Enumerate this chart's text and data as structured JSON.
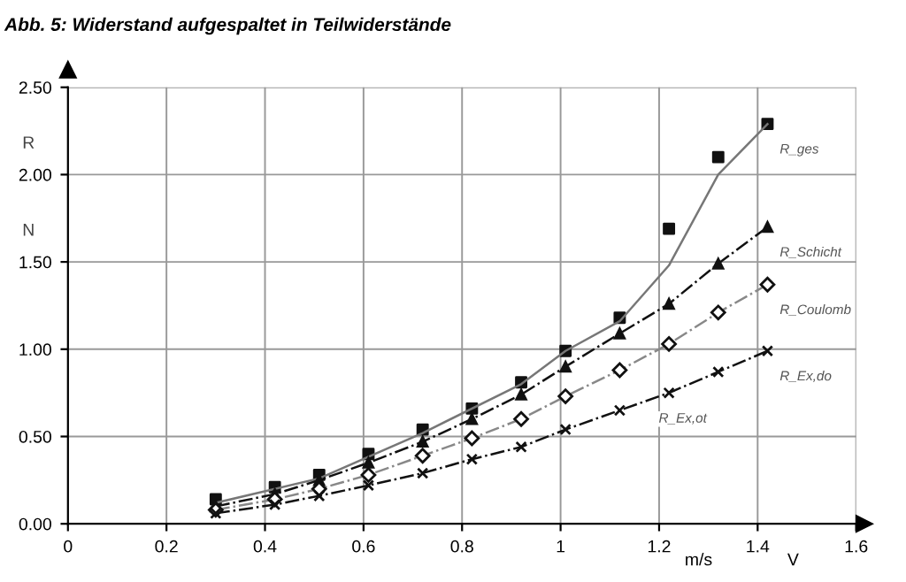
{
  "chart_data": {
    "type": "line",
    "title": "Abb. 5: Widerstand aufgespaltet in Teilwiderstände",
    "xlabel": "V",
    "ylabel": "R N",
    "x": [
      0.3,
      0.42,
      0.51,
      0.61,
      0.72,
      0.82,
      0.92,
      1.01,
      1.12,
      1.22,
      1.32,
      1.42
    ],
    "series": [
      {
        "type": "scatter",
        "marker": "square",
        "color": "#111111",
        "values": [
          0.14,
          0.21,
          0.28,
          0.4,
          0.54,
          0.66,
          0.81,
          0.99,
          1.18,
          1.69,
          2.1,
          2.29
        ]
      },
      {
        "name": "R_ges",
        "x": [
          0.3,
          0.51,
          0.72,
          0.92,
          1.01,
          1.12,
          1.22,
          1.32,
          1.42
        ],
        "marker": "none",
        "line_style": "solid",
        "color": "#777777",
        "values": [
          0.12,
          0.26,
          0.52,
          0.8,
          0.99,
          1.16,
          1.48,
          2.0,
          2.29
        ]
      },
      {
        "name": "R_Schicht",
        "marker": "triangle",
        "line_style": "dashed",
        "color": "#111111",
        "values": [
          0.1,
          0.17,
          0.25,
          0.35,
          0.47,
          0.6,
          0.74,
          0.9,
          1.09,
          1.26,
          1.49,
          1.7
        ]
      },
      {
        "name": "R_Coulomb",
        "marker": "diamond",
        "line_style": "dashed",
        "color": "#888888",
        "values": [
          0.08,
          0.14,
          0.2,
          0.28,
          0.39,
          0.49,
          0.6,
          0.73,
          0.88,
          1.03,
          1.21,
          1.37
        ]
      },
      {
        "name": "R_Ex,do",
        "marker": "cross",
        "line_style": "dashed",
        "color": "#111111",
        "values": [
          0.06,
          0.11,
          0.16,
          0.22,
          0.29,
          0.37,
          0.44,
          0.54,
          0.65,
          0.75,
          0.87,
          0.99
        ]
      }
    ],
    "xlim": [
      0,
      1.6
    ],
    "ylim": [
      0,
      2.5
    ],
    "xticks": [
      0,
      0.2,
      0.4,
      0.6,
      0.8,
      1,
      1.2,
      1.4,
      1.6
    ],
    "yticks": [
      {
        "value": 0,
        "label": "0.00"
      },
      {
        "value": 0.5,
        "label": "0.50"
      },
      {
        "value": 1,
        "label": "1.00"
      },
      {
        "value": 1.5,
        "label": "1.50"
      },
      {
        "value": 2,
        "label": "2.00"
      },
      {
        "value": 2.5,
        "label": "2.50"
      }
    ],
    "grid": true,
    "annotations": [
      "m/s",
      "R_Ex,ot"
    ]
  }
}
